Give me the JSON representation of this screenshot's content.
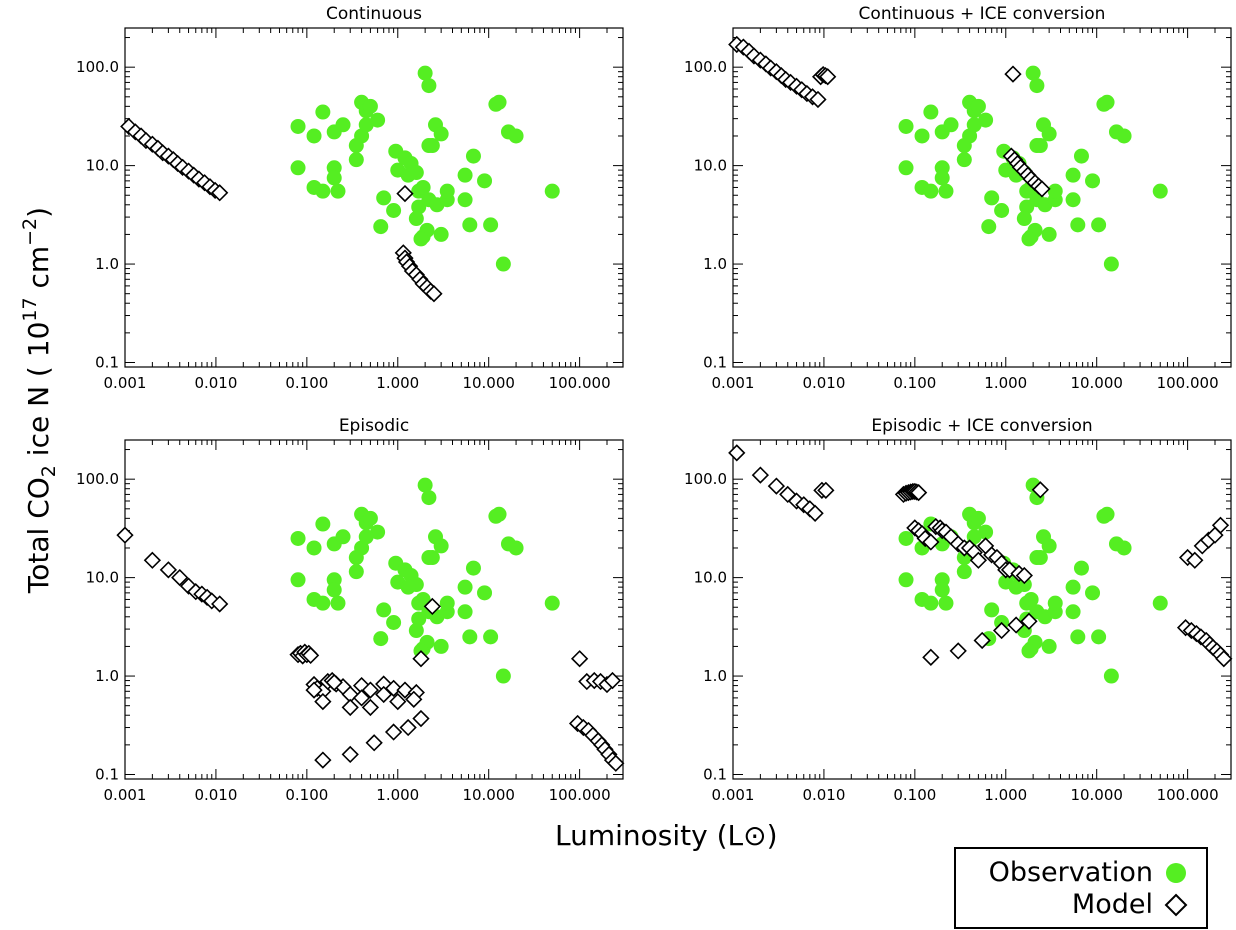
{
  "figure": {
    "ylabel": "Total CO2 ice N (10^17 cm^-2)",
    "xlabel": "Luminosity (L⊙)",
    "legend": {
      "position": "bottom-right",
      "entries": [
        {
          "label": "Observation",
          "marker": "filled-circle",
          "color": "#55ee22"
        },
        {
          "label": "Model",
          "marker": "open-diamond",
          "color": "#000000"
        }
      ]
    }
  },
  "chart_data": [
    {
      "type": "scatter",
      "title": "Continuous",
      "xscale": "log",
      "yscale": "log",
      "xlim": [
        0.001,
        300
      ],
      "ylim": [
        0.09,
        250
      ],
      "xticks": [
        "0.001",
        "0.010",
        "0.100",
        "1.000",
        "10.000",
        "100.000"
      ],
      "yticks": [
        "0.1",
        "1.0",
        "10.0",
        "100.0"
      ],
      "series": [
        {
          "name": "Observation",
          "marker": "filled-circle",
          "x": [
            0.08,
            0.12,
            0.15,
            0.2,
            0.08,
            0.12,
            0.15,
            0.2,
            0.2,
            0.22,
            0.25,
            0.35,
            0.4,
            0.45,
            0.5,
            0.6,
            0.4,
            0.35,
            0.45,
            0.65,
            0.7,
            0.95,
            1.0,
            1.2,
            1.4,
            1.6,
            1.7,
            1.9,
            2.1,
            2.2,
            2.4,
            2.2,
            0.9,
            1.3,
            1.7,
            2.2,
            2.7,
            3.0,
            3.5,
            1.6,
            1.9,
            2.6,
            3.0,
            3.5,
            5.5,
            6.2,
            6.8,
            9.0,
            10.5,
            12.0,
            13.0,
            14.5,
            16.5,
            20.0,
            5.5,
            2.0,
            1.8,
            50.0
          ],
          "y": [
            25,
            20,
            35,
            22,
            9.5,
            6,
            5.5,
            9.5,
            7.5,
            5.5,
            26,
            11.5,
            44,
            36,
            40,
            29,
            20,
            16,
            26,
            2.4,
            4.7,
            14,
            9,
            12,
            10.5,
            8.5,
            3.8,
            1.9,
            2.2,
            16,
            16,
            65,
            3.5,
            8,
            5.5,
            4.5,
            4,
            2,
            4.5,
            2.9,
            6,
            26,
            21,
            5.5,
            4.5,
            2.5,
            12.5,
            7,
            2.5,
            42,
            44,
            1,
            22,
            20,
            8,
            87,
            1.8,
            5.5
          ]
        },
        {
          "name": "Model",
          "marker": "open-diamond",
          "x": [
            0.0011,
            0.0013,
            0.0015,
            0.0017,
            0.002,
            0.0023,
            0.0026,
            0.003,
            0.0034,
            0.0038,
            0.0043,
            0.005,
            0.0057,
            0.0065,
            0.0075,
            0.0086,
            0.0098,
            0.011,
            1.2,
            1.15,
            1.2,
            1.25,
            1.35,
            1.45,
            1.6,
            1.75,
            1.9,
            2.1,
            2.3,
            2.5
          ],
          "y": [
            25,
            22,
            20,
            18,
            16.5,
            15,
            13.5,
            12.5,
            11.5,
            10.5,
            9.6,
            8.8,
            8,
            7.3,
            6.7,
            6.1,
            5.6,
            5.3,
            5.2,
            1.3,
            1.15,
            1.05,
            0.95,
            0.85,
            0.78,
            0.7,
            0.63,
            0.58,
            0.53,
            0.5
          ]
        }
      ]
    },
    {
      "type": "scatter",
      "title": "Continuous + ICE conversion",
      "xscale": "log",
      "yscale": "log",
      "xlim": [
        0.001,
        300
      ],
      "ylim": [
        0.09,
        250
      ],
      "xticks": [
        "0.001",
        "0.010",
        "0.100",
        "1.000",
        "10.000",
        "100.000"
      ],
      "yticks": [
        "0.1",
        "1.0",
        "10.0",
        "100.0"
      ],
      "series": [
        {
          "name": "Observation",
          "marker": "filled-circle",
          "x": [
            0.08,
            0.12,
            0.15,
            0.2,
            0.08,
            0.12,
            0.15,
            0.2,
            0.2,
            0.22,
            0.25,
            0.35,
            0.4,
            0.45,
            0.5,
            0.6,
            0.4,
            0.35,
            0.45,
            0.65,
            0.7,
            0.95,
            1.0,
            1.2,
            1.4,
            1.6,
            1.7,
            1.9,
            2.1,
            2.2,
            2.4,
            2.2,
            0.9,
            1.3,
            1.7,
            2.2,
            2.7,
            3.0,
            3.5,
            1.6,
            1.9,
            2.6,
            3.0,
            3.5,
            5.5,
            6.2,
            6.8,
            9.0,
            10.5,
            12.0,
            13.0,
            14.5,
            16.5,
            20.0,
            5.5,
            2.0,
            1.8,
            50.0
          ],
          "y": [
            25,
            20,
            35,
            22,
            9.5,
            6,
            5.5,
            9.5,
            7.5,
            5.5,
            26,
            11.5,
            44,
            36,
            40,
            29,
            20,
            16,
            26,
            2.4,
            4.7,
            14,
            9,
            12,
            10.5,
            8.5,
            3.8,
            1.9,
            2.2,
            16,
            16,
            65,
            3.5,
            8,
            5.5,
            4.5,
            4,
            2,
            4.5,
            2.9,
            6,
            26,
            21,
            5.5,
            4.5,
            2.5,
            12.5,
            7,
            2.5,
            42,
            44,
            1,
            22,
            20,
            8,
            87,
            1.8,
            5.5
          ]
        },
        {
          "name": "Model",
          "marker": "open-diamond",
          "x": [
            0.0011,
            0.0013,
            0.0015,
            0.0017,
            0.002,
            0.0023,
            0.0026,
            0.003,
            0.0034,
            0.0038,
            0.0043,
            0.005,
            0.0057,
            0.0065,
            0.0075,
            0.0086,
            0.0092,
            0.0098,
            0.0104,
            0.011,
            1.2,
            1.15,
            1.25,
            1.35,
            1.45,
            1.6,
            1.75,
            1.9,
            2.1,
            2.3,
            2.5
          ],
          "y": [
            170,
            160,
            145,
            130,
            118,
            108,
            98,
            90,
            82,
            75,
            70,
            64,
            59,
            54,
            50,
            47,
            80,
            84,
            82,
            80,
            85,
            12.5,
            11.5,
            10.5,
            9.6,
            8.8,
            8.0,
            7.3,
            6.7,
            6.2,
            5.8
          ]
        }
      ]
    },
    {
      "type": "scatter",
      "title": "Episodic",
      "xscale": "log",
      "yscale": "log",
      "xlim": [
        0.001,
        300
      ],
      "ylim": [
        0.09,
        250
      ],
      "xticks": [
        "0.001",
        "0.010",
        "0.100",
        "1.000",
        "10.000",
        "100.000"
      ],
      "yticks": [
        "0.1",
        "1.0",
        "10.0",
        "100.0"
      ],
      "series": [
        {
          "name": "Observation",
          "marker": "filled-circle",
          "x": [
            0.08,
            0.12,
            0.15,
            0.2,
            0.08,
            0.12,
            0.15,
            0.2,
            0.2,
            0.22,
            0.25,
            0.35,
            0.4,
            0.45,
            0.5,
            0.6,
            0.4,
            0.35,
            0.45,
            0.65,
            0.7,
            0.95,
            1.0,
            1.2,
            1.4,
            1.6,
            1.7,
            1.9,
            2.1,
            2.2,
            2.4,
            2.2,
            0.9,
            1.3,
            1.7,
            2.2,
            2.7,
            3.0,
            3.5,
            1.6,
            1.9,
            2.6,
            3.0,
            3.5,
            5.5,
            6.2,
            6.8,
            9.0,
            10.5,
            12.0,
            13.0,
            14.5,
            16.5,
            20.0,
            5.5,
            2.0,
            1.8,
            50.0
          ],
          "y": [
            25,
            20,
            35,
            22,
            9.5,
            6,
            5.5,
            9.5,
            7.5,
            5.5,
            26,
            11.5,
            44,
            36,
            40,
            29,
            20,
            16,
            26,
            2.4,
            4.7,
            14,
            9,
            12,
            10.5,
            8.5,
            3.8,
            1.9,
            2.2,
            16,
            16,
            65,
            3.5,
            8,
            5.5,
            4.5,
            4,
            2,
            4.5,
            2.9,
            6,
            26,
            21,
            5.5,
            4.5,
            2.5,
            12.5,
            7,
            2.5,
            42,
            44,
            1,
            22,
            20,
            8,
            87,
            1.8,
            5.5
          ]
        },
        {
          "name": "Model",
          "marker": "open-diamond",
          "x": [
            0.001,
            0.002,
            0.003,
            0.004,
            0.005,
            0.006,
            0.007,
            0.008,
            0.009,
            0.011,
            0.08,
            0.085,
            0.09,
            0.095,
            0.1,
            0.105,
            0.11,
            0.12,
            0.13,
            0.15,
            0.17,
            0.19,
            0.21,
            0.25,
            0.3,
            0.4,
            0.5,
            0.7,
            0.9,
            1.2,
            1.6,
            2.4,
            1.8,
            0.12,
            0.15,
            0.2,
            0.3,
            0.4,
            0.5,
            0.7,
            1.0,
            1.5,
            0.15,
            0.3,
            0.55,
            0.9,
            1.3,
            1.8,
            95,
            110,
            125,
            140,
            160,
            175,
            190,
            210,
            230,
            250,
            100,
            120,
            145,
            170,
            200,
            230
          ],
          "y": [
            27,
            15,
            12,
            10,
            8.2,
            7.2,
            6.8,
            6.3,
            5.8,
            5.4,
            1.65,
            1.7,
            1.6,
            1.75,
            1.65,
            1.7,
            1.62,
            0.82,
            0.75,
            0.7,
            0.88,
            0.9,
            0.83,
            0.78,
            0.65,
            0.8,
            0.72,
            0.83,
            0.75,
            0.72,
            0.68,
            5.1,
            1.5,
            0.72,
            0.55,
            0.86,
            0.48,
            0.6,
            0.48,
            0.65,
            0.55,
            0.58,
            0.14,
            0.16,
            0.21,
            0.27,
            0.3,
            0.37,
            0.33,
            0.3,
            0.28,
            0.25,
            0.22,
            0.2,
            0.18,
            0.16,
            0.14,
            0.13,
            1.5,
            0.88,
            0.9,
            0.88,
            0.82,
            0.9
          ]
        }
      ]
    },
    {
      "type": "scatter",
      "title": "Episodic + ICE conversion",
      "xscale": "log",
      "yscale": "log",
      "xlim": [
        0.001,
        300
      ],
      "ylim": [
        0.09,
        250
      ],
      "xticks": [
        "0.001",
        "0.010",
        "0.100",
        "1.000",
        "10.000",
        "100.000"
      ],
      "yticks": [
        "0.1",
        "1.0",
        "10.0",
        "100.0"
      ],
      "series": [
        {
          "name": "Observation",
          "marker": "filled-circle",
          "x": [
            0.08,
            0.12,
            0.15,
            0.2,
            0.08,
            0.12,
            0.15,
            0.2,
            0.2,
            0.22,
            0.25,
            0.35,
            0.4,
            0.45,
            0.5,
            0.6,
            0.4,
            0.35,
            0.45,
            0.65,
            0.7,
            0.95,
            1.0,
            1.2,
            1.4,
            1.6,
            1.7,
            1.9,
            2.1,
            2.2,
            2.4,
            2.2,
            0.9,
            1.3,
            1.7,
            2.2,
            2.7,
            3.0,
            3.5,
            1.6,
            1.9,
            2.6,
            3.0,
            3.5,
            5.5,
            6.2,
            6.8,
            9.0,
            10.5,
            12.0,
            13.0,
            14.5,
            16.5,
            20.0,
            5.5,
            2.0,
            1.8,
            50.0
          ],
          "y": [
            25,
            20,
            35,
            22,
            9.5,
            6,
            5.5,
            9.5,
            7.5,
            5.5,
            26,
            11.5,
            44,
            36,
            40,
            29,
            20,
            16,
            26,
            2.4,
            4.7,
            14,
            9,
            12,
            10.5,
            8.5,
            3.8,
            1.9,
            2.2,
            16,
            16,
            65,
            3.5,
            8,
            5.5,
            4.5,
            4,
            2,
            4.5,
            2.9,
            6,
            26,
            21,
            5.5,
            4.5,
            2.5,
            12.5,
            7,
            2.5,
            42,
            44,
            1,
            22,
            20,
            8,
            87,
            1.8,
            5.5
          ]
        },
        {
          "name": "Model",
          "marker": "open-diamond",
          "x": [
            0.0011,
            0.002,
            0.003,
            0.004,
            0.005,
            0.006,
            0.007,
            0.008,
            0.0095,
            0.0105,
            0.075,
            0.08,
            0.085,
            0.09,
            0.095,
            0.1,
            0.105,
            0.11,
            0.1,
            0.11,
            0.12,
            0.13,
            0.15,
            0.17,
            0.19,
            0.2,
            0.22,
            0.25,
            0.3,
            0.35,
            0.4,
            0.45,
            0.5,
            0.6,
            0.7,
            0.8,
            0.9,
            1.0,
            1.1,
            1.4,
            1.6,
            2.4,
            0.15,
            0.3,
            0.55,
            0.9,
            1.3,
            1.8,
            95,
            110,
            125,
            140,
            160,
            175,
            190,
            210,
            230,
            250,
            100,
            120,
            145,
            170,
            200,
            230
          ],
          "y": [
            185,
            110,
            85,
            70,
            60,
            55,
            50,
            45,
            77,
            77,
            70,
            72,
            73,
            74,
            75,
            75,
            74,
            73,
            32,
            30,
            28,
            25,
            23,
            33,
            32,
            30,
            29,
            26,
            22,
            20,
            20,
            18,
            15,
            21,
            17,
            16,
            14,
            12,
            12,
            11,
            10.5,
            78,
            1.55,
            1.8,
            2.3,
            2.9,
            3.3,
            3.6,
            3.1,
            2.9,
            2.7,
            2.5,
            2.3,
            2.1,
            1.95,
            1.8,
            1.65,
            1.5,
            16,
            15,
            21,
            24,
            27,
            34
          ]
        }
      ]
    }
  ]
}
